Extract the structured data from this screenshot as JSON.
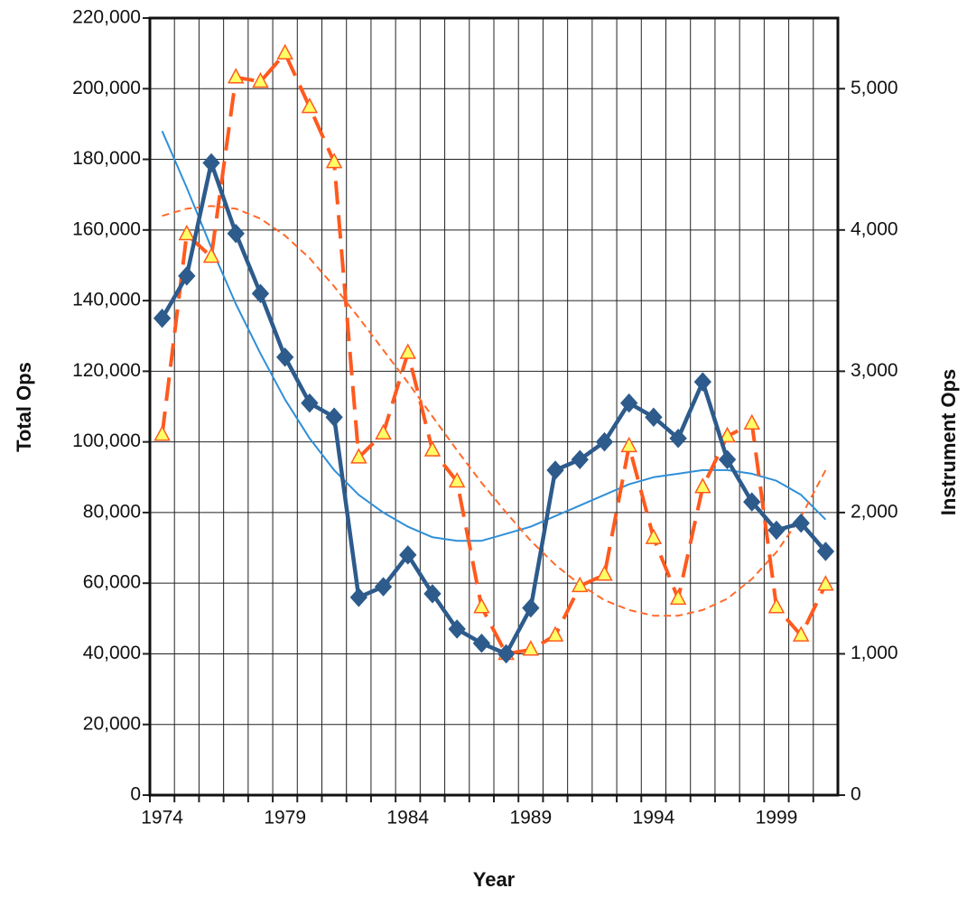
{
  "chart_data": {
    "type": "line",
    "x_label": "Year",
    "y_label": "Total Ops",
    "y2_label": "Instrument Ops",
    "categories": [
      1974,
      null,
      null,
      null,
      null,
      1979,
      null,
      null,
      null,
      null,
      1984,
      null,
      null,
      null,
      null,
      1989,
      null,
      null,
      null,
      null,
      1994,
      null,
      null,
      null,
      null,
      1999,
      null,
      null
    ],
    "ylim": [
      0,
      220000
    ],
    "yticks": [
      0,
      {
        "value": 20000,
        "label": "20,000"
      },
      {
        "value": 40000,
        "label": "40,000"
      },
      {
        "value": 60000,
        "label": "60,000"
      },
      {
        "value": 80000,
        "label": "80,000"
      },
      {
        "value": 100000,
        "label": "100,000"
      },
      {
        "value": 120000,
        "label": "120,000"
      },
      {
        "value": 140000,
        "label": "140,000"
      },
      {
        "value": 160000,
        "label": "160,000"
      },
      {
        "value": 180000,
        "label": "180,000"
      },
      {
        "value": 200000,
        "label": "200,000"
      },
      {
        "value": 220000,
        "label": "220,000"
      }
    ],
    "y2lim": [
      0,
      5500
    ],
    "y2ticks": [
      0,
      {
        "value": 1000,
        "label": "1,000"
      },
      {
        "value": 2000,
        "label": "2,000"
      },
      {
        "value": 3000,
        "label": "3,000"
      },
      {
        "value": 4000,
        "label": "4,000"
      },
      {
        "value": 5000,
        "label": "5,000"
      }
    ],
    "grid": true,
    "series": [
      {
        "color": "#2f8fd8",
        "axis": "y",
        "style": "trend",
        "values": [
          188000,
          172000,
          155000,
          139000,
          125000,
          112000,
          101000,
          92000,
          85000,
          80000,
          76000,
          73000,
          72000,
          72000,
          74000,
          76000,
          79000,
          82000,
          85000,
          88000,
          90000,
          91000,
          92000,
          92000,
          91000,
          89000,
          85000,
          78000
        ]
      },
      {
        "color": "#ff6a2a",
        "axis": "y2",
        "style": "trend",
        "values": [
          4100,
          4150,
          4170,
          4150,
          4080,
          3960,
          3800,
          3600,
          3380,
          3150,
          2920,
          2680,
          2440,
          2210,
          2000,
          1800,
          1630,
          1490,
          1380,
          1310,
          1270,
          1270,
          1310,
          1390,
          1530,
          1720,
          1970,
          2300
        ]
      },
      {
        "color": "#ff5a1f",
        "axis": "y2",
        "style": "dashed",
        "marker": "triangle",
        "values": [
          2550,
          3970,
          3810,
          5080,
          5050,
          5250,
          4870,
          4480,
          2390,
          2560,
          3130,
          2440,
          2220,
          1330,
          1000,
          1030,
          1130,
          1480,
          1560,
          2470,
          1820,
          1390,
          2180,
          2540,
          2630,
          1330,
          1130,
          1490
        ]
      },
      {
        "color": "#2d5b8c",
        "axis": "y",
        "style": "solid",
        "marker": "diamond",
        "values": [
          135000,
          147000,
          179000,
          159000,
          142000,
          124000,
          111000,
          107000,
          56000,
          59000,
          68000,
          57000,
          47000,
          43000,
          40000,
          53000,
          92000,
          95000,
          100000,
          111000,
          107000,
          101000,
          117000,
          95000,
          83000,
          75000,
          77000,
          69000
        ]
      }
    ]
  }
}
